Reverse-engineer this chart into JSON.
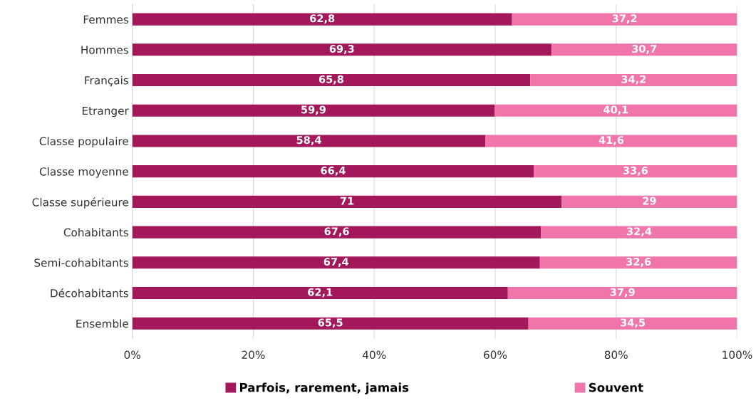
{
  "chart_data": {
    "type": "bar",
    "orientation": "horizontal",
    "stacked": true,
    "categories": [
      "Femmes",
      "Hommes",
      "Français",
      "Etranger",
      "Classe populaire",
      "Classe moyenne",
      "Classe supérieure",
      "Cohabitants",
      "Semi-cohabitants",
      "Décohabitants",
      "Ensemble"
    ],
    "series": [
      {
        "name": "Parfois, rarement, jamais",
        "color": "#a3185a",
        "values": [
          62.8,
          69.3,
          65.8,
          59.9,
          58.4,
          66.4,
          71,
          67.6,
          67.4,
          62.1,
          65.5
        ],
        "value_labels": [
          "62,8",
          "69,3",
          "65,8",
          "59,9",
          "58,4",
          "66,4",
          "71",
          "67,6",
          "67,4",
          "62,1",
          "65,5"
        ]
      },
      {
        "name": "Souvent",
        "color": "#f075ab",
        "values": [
          37.2,
          30.7,
          34.2,
          40.1,
          41.6,
          33.6,
          29,
          32.4,
          32.6,
          37.9,
          34.5
        ],
        "value_labels": [
          "37,2",
          "30,7",
          "34,2",
          "40,1",
          "41,6",
          "33,6",
          "29",
          "32,4",
          "32,6",
          "37,9",
          "34,5"
        ]
      }
    ],
    "xlim": [
      0,
      100
    ],
    "xticks": [
      {
        "value": 0,
        "label": "0%"
      },
      {
        "value": 20,
        "label": "20%"
      },
      {
        "value": 40,
        "label": "40%"
      },
      {
        "value": 60,
        "label": "60%"
      },
      {
        "value": 80,
        "label": "80%"
      },
      {
        "value": 100,
        "label": "100%"
      }
    ],
    "grid": "x",
    "legend": "bottom"
  }
}
